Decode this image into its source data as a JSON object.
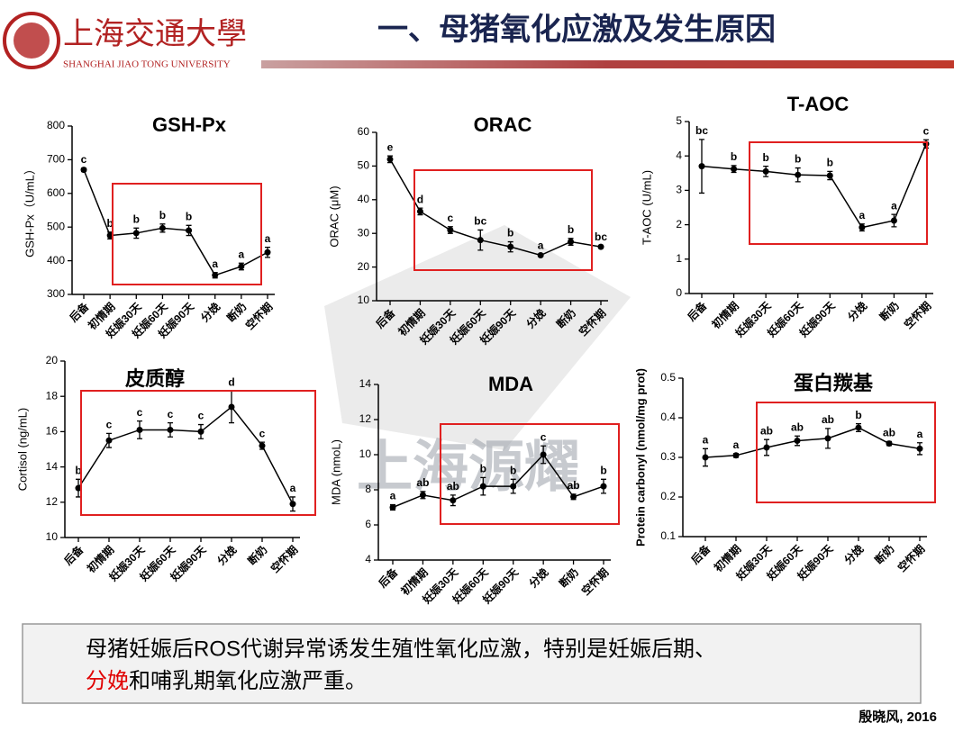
{
  "header": {
    "logo_text": "上海交通大學",
    "logo_subtext": "SHANGHAI JIAO TONG UNIVERSITY",
    "title": "一、母猪氧化应激及发生原因"
  },
  "watermark": "上海源耀",
  "chart_data": [
    {
      "type": "line",
      "title": "GSH-Px",
      "y_label": "GSH-Px（U/mL）",
      "color": "#000000",
      "categories": [
        "后备",
        "初情期",
        "妊娠30天",
        "妊娠60天",
        "妊娠90天",
        "分娩",
        "断奶",
        "空怀期"
      ],
      "values": [
        670,
        475,
        482,
        497,
        490,
        357,
        383,
        425
      ],
      "errors": [
        5,
        10,
        15,
        12,
        15,
        8,
        10,
        15
      ],
      "labels": [
        "c",
        "b",
        "b",
        "b",
        "b",
        "a",
        "a",
        "a"
      ],
      "ylim": [
        300,
        800
      ],
      "yticks": [
        300,
        400,
        500,
        600,
        700,
        800
      ]
    },
    {
      "type": "line",
      "title": "ORAC",
      "y_label": "ORAC (μM)",
      "color": "#000000",
      "categories": [
        "后备",
        "初情期",
        "妊娠30天",
        "妊娠60天",
        "妊娠90天",
        "分娩",
        "断奶",
        "空怀期"
      ],
      "values": [
        52,
        36.5,
        31,
        28,
        26,
        23.5,
        27.5,
        26
      ],
      "errors": [
        1,
        1,
        1,
        3,
        1.5,
        0.3,
        1,
        0.3
      ],
      "labels": [
        "e",
        "d",
        "c",
        "bc",
        "b",
        "a",
        "b",
        "bc"
      ],
      "ylim": [
        10,
        60
      ],
      "yticks": [
        10,
        20,
        30,
        40,
        50,
        60
      ]
    },
    {
      "type": "line",
      "title": "T-AOC",
      "y_label": "T-AOC (U/mL)",
      "color": "#000000",
      "categories": [
        "后备",
        "初情期",
        "妊娠30天",
        "妊娠60天",
        "妊娠90天",
        "分娩",
        "断奶",
        "空怀期"
      ],
      "values": [
        3.7,
        3.62,
        3.55,
        3.45,
        3.43,
        1.92,
        2.12,
        4.35
      ],
      "errors": [
        0.78,
        0.1,
        0.15,
        0.2,
        0.12,
        0.1,
        0.18,
        0.12
      ],
      "labels": [
        "bc",
        "b",
        "b",
        "b",
        "b",
        "a",
        "a",
        "c"
      ],
      "ylim": [
        0,
        5
      ],
      "yticks": [
        0,
        1,
        2,
        3,
        4,
        5
      ]
    },
    {
      "type": "line",
      "title": "皮质醇",
      "y_label": "Cortisol (ng/mL)",
      "color": "#000000",
      "categories": [
        "后备",
        "初情期",
        "妊娠30天",
        "妊娠60天",
        "妊娠90天",
        "分娩",
        "断奶",
        "空怀期"
      ],
      "values": [
        12.8,
        15.5,
        16.1,
        16.1,
        16.0,
        17.4,
        15.2,
        11.9
      ],
      "errors": [
        0.5,
        0.4,
        0.5,
        0.4,
        0.4,
        0.9,
        0.2,
        0.4
      ],
      "labels": [
        "b",
        "c",
        "c",
        "c",
        "c",
        "d",
        "c",
        "a"
      ],
      "ylim": [
        10,
        20
      ],
      "yticks": [
        10,
        12,
        14,
        16,
        18,
        20
      ]
    },
    {
      "type": "line",
      "title": "MDA",
      "y_label": "MDA (nmoL)",
      "color": "#000000",
      "categories": [
        "后备",
        "初情期",
        "妊娠30天",
        "妊娠60天",
        "妊娠90天",
        "分娩",
        "断奶",
        "空怀期"
      ],
      "values": [
        7.0,
        7.7,
        7.4,
        8.2,
        8.2,
        10.0,
        7.6,
        8.2
      ],
      "errors": [
        0.15,
        0.2,
        0.3,
        0.5,
        0.4,
        0.5,
        0.15,
        0.4
      ],
      "labels": [
        "a",
        "ab",
        "ab",
        "b",
        "b",
        "c",
        "ab",
        "b"
      ],
      "ylim": [
        4,
        14
      ],
      "yticks": [
        4,
        6,
        8,
        10,
        12,
        14
      ]
    },
    {
      "type": "line",
      "title": "蛋白羰基",
      "y_label": "Protein carbonyl (nmol/mg prot)",
      "color": "#000000",
      "categories": [
        "后备",
        "初情期",
        "妊娠30天",
        "妊娠60天",
        "妊娠90天",
        "分娩",
        "断奶",
        "空怀期"
      ],
      "values": [
        0.3,
        0.305,
        0.325,
        0.342,
        0.348,
        0.375,
        0.335,
        0.322
      ],
      "errors": [
        0.022,
        0.005,
        0.02,
        0.012,
        0.025,
        0.01,
        0.005,
        0.015
      ],
      "labels": [
        "a",
        "a",
        "ab",
        "ab",
        "ab",
        "b",
        "ab",
        "a"
      ],
      "ylim": [
        0.1,
        0.5
      ],
      "yticks": [
        0.1,
        0.2,
        0.3,
        0.4,
        0.5
      ]
    }
  ],
  "summary": {
    "line1": "母猪妊娠后ROS代谢异常诱发生殖性氧化应激，特别是妊娠后期、",
    "highlight": "分娩",
    "line2_rest": "和哺乳期氧化应激严重。"
  },
  "citation": "殷晓风, 2016"
}
